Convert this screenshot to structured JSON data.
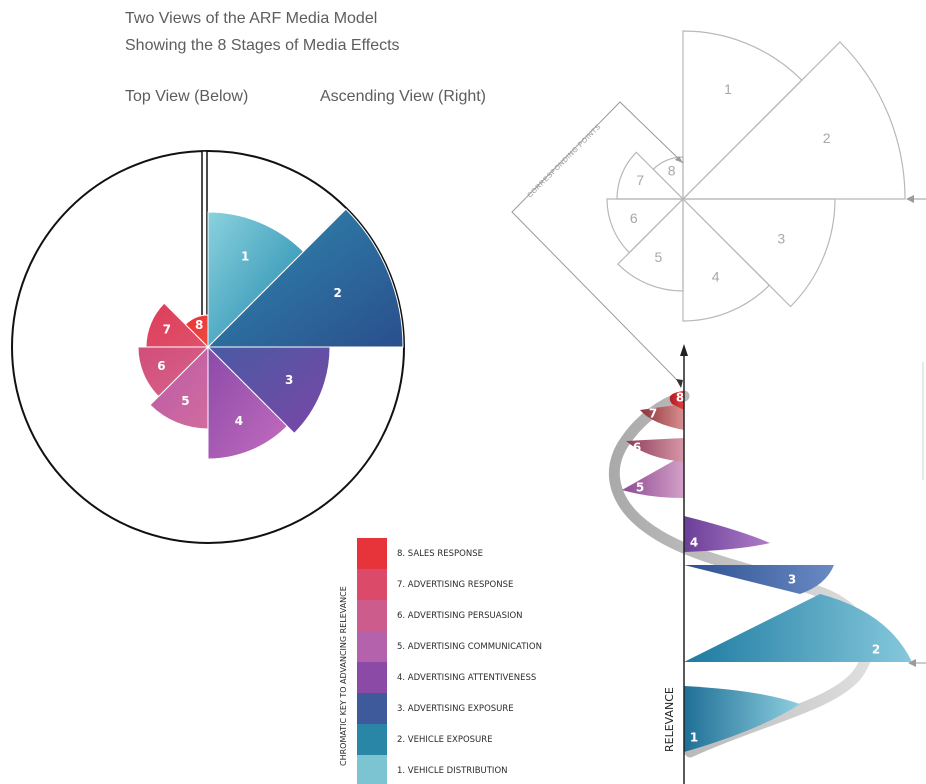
{
  "header": {
    "title_line1": "Two Views of the ARF Media Model",
    "title_line2": "Showing the 8 Stages of Media Effects",
    "top_view_label": "Top View (Below)",
    "ascending_view_label": "Ascending View (Right)"
  },
  "stage_numbers": [
    "1",
    "2",
    "3",
    "4",
    "5",
    "6",
    "7",
    "8"
  ],
  "stage_colors": [
    "#2e98b8",
    "#2a6a96",
    "#6a4aa8",
    "#a85cb4",
    "#c25c9c",
    "#d24e78",
    "#dc3e56",
    "#e8333b"
  ],
  "legend": {
    "title": "CHROMATIC KEY TO ADVANCING RELEVANCE",
    "items": [
      {
        "label": "8. SALES RESPONSE",
        "color": "#e6343a"
      },
      {
        "label": "7. ADVERTISING RESPONSE",
        "color": "#dc4a6a"
      },
      {
        "label": "6. ADVERTISING PERSUASION",
        "color": "#cc5c8c"
      },
      {
        "label": "5. ADVERTISING COMMUNICATION",
        "color": "#b462ac"
      },
      {
        "label": "4. ADVERTISING ATTENTIVENESS",
        "color": "#8a4aa6"
      },
      {
        "label": "3. ADVERTISING EXPOSURE",
        "color": "#3e5a9a"
      },
      {
        "label": "2. VEHICLE EXPOSURE",
        "color": "#2a86a6"
      },
      {
        "label": "1. VEHICLE DISTRIBUTION",
        "color": "#7cc4d2"
      }
    ]
  },
  "outline_view": {
    "corresponding_points_label": "CORRESPONDING POINTS"
  },
  "ascending_view": {
    "axis_label": "RELEVANCE"
  }
}
